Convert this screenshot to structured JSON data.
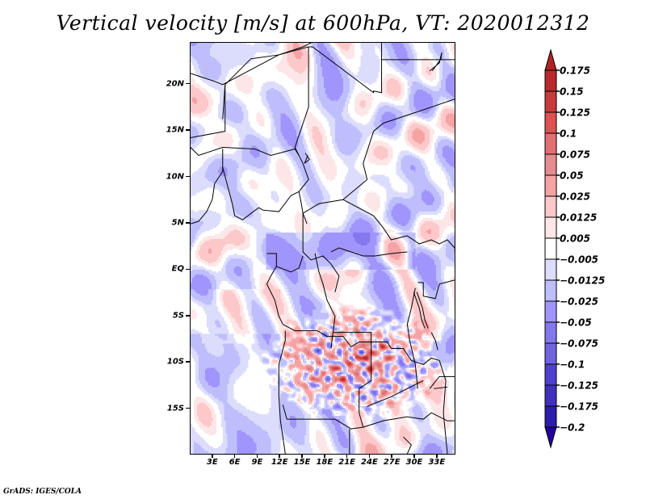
{
  "chart_data": {
    "type": "heatmap",
    "title": "Vertical velocity [m/s] at 600hPa, VT: 2020012312",
    "variable": "Vertical velocity",
    "units": "m/s",
    "level": "600hPa",
    "valid_time": "2020012312",
    "xlabel": "",
    "ylabel": "",
    "x_range_deg": [
      0,
      35.5
    ],
    "y_range_deg": [
      -20,
      24.5
    ],
    "x_ticks": [
      {
        "value": 3,
        "label": "3E"
      },
      {
        "value": 6,
        "label": "6E"
      },
      {
        "value": 9,
        "label": "9E"
      },
      {
        "value": 12,
        "label": "12E"
      },
      {
        "value": 15,
        "label": "15E"
      },
      {
        "value": 18,
        "label": "18E"
      },
      {
        "value": 21,
        "label": "21E"
      },
      {
        "value": 24,
        "label": "24E"
      },
      {
        "value": 27,
        "label": "27E"
      },
      {
        "value": 30,
        "label": "30E"
      },
      {
        "value": 33,
        "label": "33E"
      }
    ],
    "y_ticks": [
      {
        "value": 20,
        "label": "20N"
      },
      {
        "value": 15,
        "label": "15N"
      },
      {
        "value": 10,
        "label": "10N"
      },
      {
        "value": 5,
        "label": "5N"
      },
      {
        "value": 0,
        "label": "EQ"
      },
      {
        "value": -5,
        "label": "5S"
      },
      {
        "value": -10,
        "label": "10S"
      },
      {
        "value": -15,
        "label": "15S"
      }
    ],
    "colorbar": {
      "orientation": "vertical",
      "position": "right",
      "levels": [
        0.175,
        0.15,
        0.125,
        0.1,
        0.075,
        0.05,
        0.025,
        0.0125,
        0.005,
        -0.005,
        -0.0125,
        -0.025,
        -0.05,
        -0.075,
        -0.1,
        -0.125,
        -0.175,
        -0.2
      ],
      "labels": [
        "0.175",
        "0.15",
        "0.125",
        "0.1",
        "0.075",
        "0.05",
        "0.025",
        "0.0125",
        "0.005",
        "−0.005",
        "−0.0125",
        "−0.025",
        "−0.05",
        "−0.075",
        "−0.1",
        "−0.125",
        "−0.175",
        "−0.2"
      ],
      "colors_top_to_bottom": [
        "#b22222",
        "#b9282a",
        "#c83a3c",
        "#e05252",
        "#e26f72",
        "#e48c90",
        "#f5a3a5",
        "#fcc8ca",
        "#fde6e7",
        "#ffffff",
        "#dcdcfd",
        "#bebefd",
        "#a095fc",
        "#8478ef",
        "#7064de",
        "#4f40d0",
        "#4130c0",
        "#2c1eac",
        "#2200a0"
      ],
      "extend": "both"
    },
    "field_description": "Mixed positive (red) and negative (blue) vertical velocity; strongest positive values over southern Congo Basin / Angola / Zambia region around 5S-15S, 15E-33E; predominantly negative/weak values over Sahara north of 10N and over Atlantic."
  },
  "credit": "GrADS: IGES/COLA"
}
